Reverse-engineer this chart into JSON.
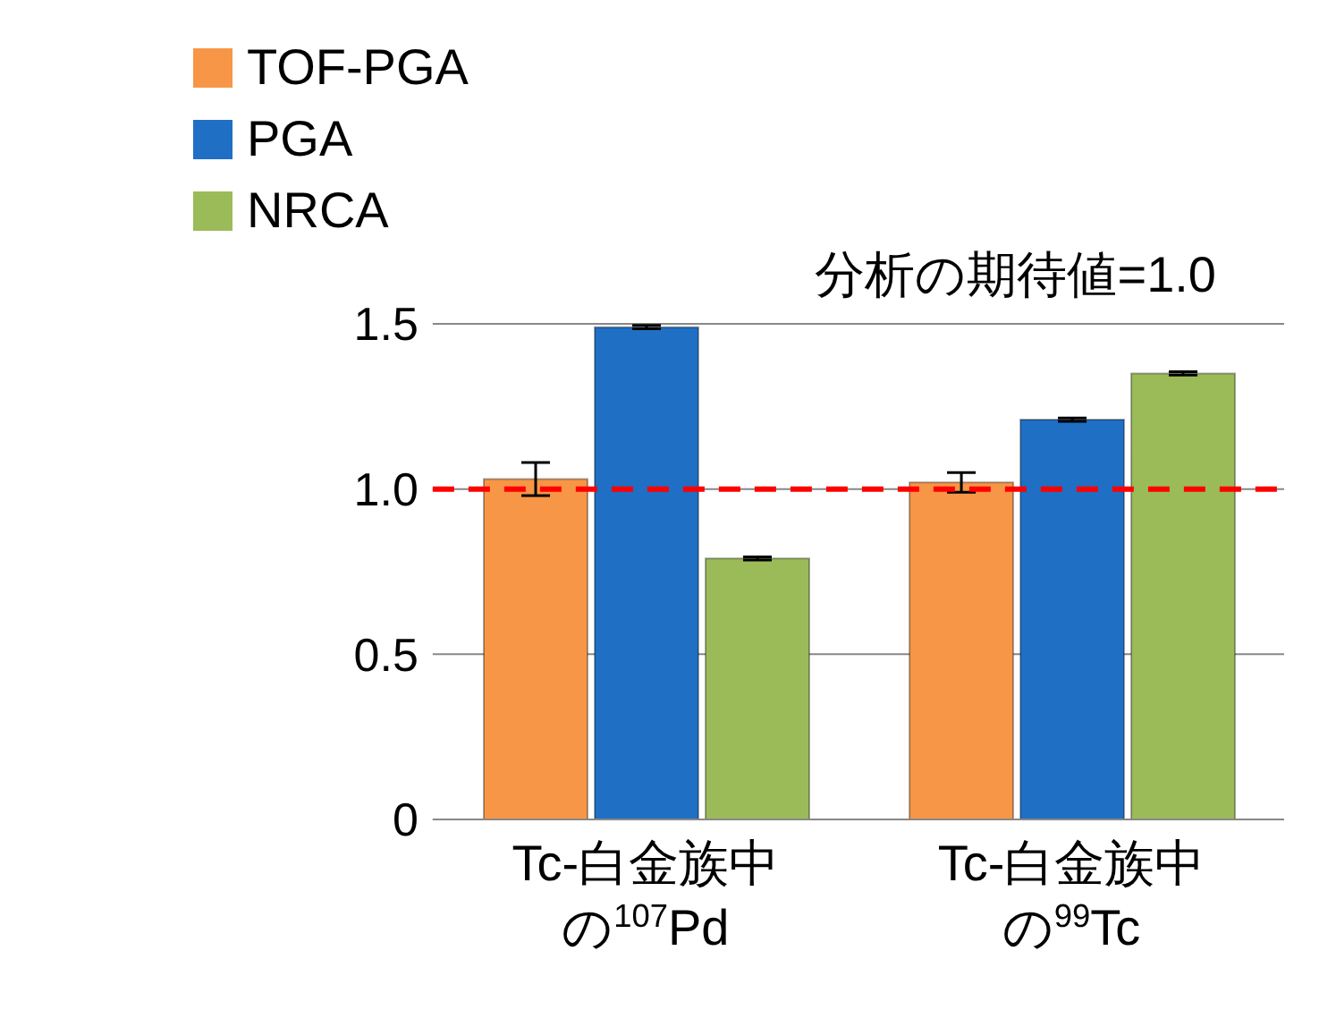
{
  "chart_data": {
    "type": "bar",
    "categories": [
      "Tc-白金族中の$^{107}$Pd",
      "Tc-白金族中の$^{99}$Tc"
    ],
    "series": [
      {
        "name": "TOF-PGA",
        "color": "#f79646",
        "values": [
          1.03,
          1.02
        ],
        "errors": [
          0.05,
          0.03
        ]
      },
      {
        "name": "PGA",
        "color": "#1f6fc5",
        "values": [
          1.49,
          1.21
        ],
        "errors": [
          0.005,
          0.005
        ]
      },
      {
        "name": "NRCA",
        "color": "#9bbb59",
        "values": [
          0.79,
          1.35
        ],
        "errors": [
          0.005,
          0.005
        ]
      }
    ],
    "ylim": [
      0,
      1.5
    ],
    "yticks": [
      0,
      0.5,
      {
        "value": 1,
        "label": "1.0"
      },
      1.5
    ],
    "grid": "y",
    "legend": "top left",
    "ref_lines": [
      {
        "axis": "y",
        "value": 1,
        "color": "#ff0000",
        "line_style": "dashed"
      }
    ],
    "annotations": [
      "分析の期待値=1.0"
    ]
  }
}
